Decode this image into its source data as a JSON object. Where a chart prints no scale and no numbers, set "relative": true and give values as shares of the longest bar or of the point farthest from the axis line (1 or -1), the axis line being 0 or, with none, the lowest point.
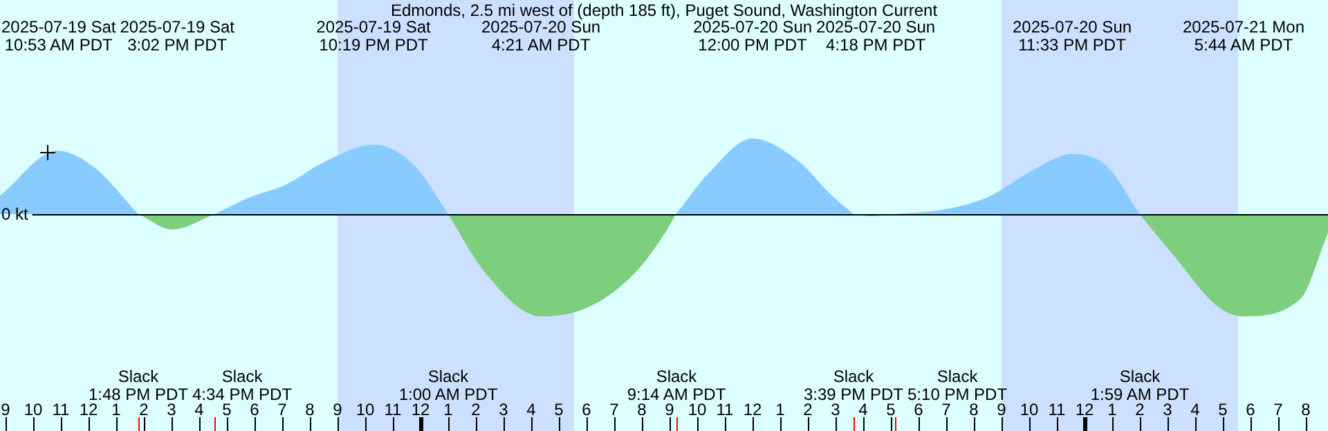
{
  "chart_data": {
    "type": "area",
    "title": "Edmonds, 2.5 mi west of (depth 185 ft), Puget Sound, Washington Current",
    "relative": true,
    "x": [
      "2025-07-19T08:48",
      "2025-07-19T10:53",
      "2025-07-19T12:09",
      "2025-07-19T13:48",
      "2025-07-19T15:02",
      "2025-07-19T16:34",
      "2025-07-19T17:48",
      "2025-07-19T19:09",
      "2025-07-19T20:27",
      "2025-07-19T22:19",
      "2025-07-19T23:48",
      "2025-07-20T01:00",
      "2025-07-20T02:18",
      "2025-07-20T04:21",
      "2025-07-20T06:09",
      "2025-07-20T07:48",
      "2025-07-20T08:48",
      "2025-07-20T09:14",
      "2025-07-20T10:27",
      "2025-07-20T12:00",
      "2025-07-20T13:39",
      "2025-07-20T14:48",
      "2025-07-20T15:39",
      "2025-07-20T16:18",
      "2025-07-20T17:10",
      "2025-07-20T18:48",
      "2025-07-20T20:27",
      "2025-07-20T22:09",
      "2025-07-20T23:33",
      "2025-07-21T00:48",
      "2025-07-21T01:59",
      "2025-07-21T03:09",
      "2025-07-21T04:48",
      "2025-07-21T05:44",
      "2025-07-21T07:48",
      "2025-07-21T08:48"
    ],
    "series": [
      {
        "color": "#87cbff",
        "values": [
          0.18,
          0.62,
          0.47,
          0,
          null,
          0,
          0.16,
          0.29,
          0.5,
          0.68,
          0.47,
          0,
          null,
          null,
          null,
          null,
          null,
          0,
          0.41,
          0.74,
          0.52,
          0.2,
          0,
          null,
          0,
          0.04,
          0.16,
          0.43,
          0.59,
          0.47,
          0,
          null,
          null,
          null,
          null,
          null
        ]
      },
      {
        "color": "#7dcf7d",
        "values": [
          null,
          null,
          null,
          0,
          -0.15,
          0,
          null,
          null,
          null,
          null,
          null,
          0,
          -0.56,
          -1,
          -0.9,
          -0.56,
          -0.2,
          0,
          null,
          null,
          null,
          null,
          0,
          -0.02,
          0,
          null,
          null,
          null,
          null,
          null,
          0,
          -0.38,
          -0.9,
          -1,
          -0.83,
          -0.18
        ]
      }
    ],
    "xlim": [
      "2025-07-19T08:48",
      "2025-07-21T08:48"
    ],
    "xticks": [
      {
        "value": "2025-07-19T09:00",
        "label": "9"
      },
      {
        "value": "2025-07-19T10:00",
        "label": "10"
      },
      {
        "value": "2025-07-19T11:00",
        "label": "11"
      },
      {
        "value": "2025-07-19T12:00",
        "label": "12"
      },
      {
        "value": "2025-07-19T13:00",
        "label": "1"
      },
      {
        "value": "2025-07-19T14:00",
        "label": "2"
      },
      {
        "value": "2025-07-19T15:00",
        "label": "3"
      },
      {
        "value": "2025-07-19T16:00",
        "label": "4"
      },
      {
        "value": "2025-07-19T17:00",
        "label": "5"
      },
      {
        "value": "2025-07-19T18:00",
        "label": "6"
      },
      {
        "value": "2025-07-19T19:00",
        "label": "7"
      },
      {
        "value": "2025-07-19T20:00",
        "label": "8"
      },
      {
        "value": "2025-07-19T21:00",
        "label": "9"
      },
      {
        "value": "2025-07-19T22:00",
        "label": "10"
      },
      {
        "value": "2025-07-19T23:00",
        "label": "11"
      },
      {
        "value": "2025-07-20T00:00",
        "label": "12"
      },
      {
        "value": "2025-07-20T01:00",
        "label": "1"
      },
      {
        "value": "2025-07-20T02:00",
        "label": "2"
      },
      {
        "value": "2025-07-20T03:00",
        "label": "3"
      },
      {
        "value": "2025-07-20T04:00",
        "label": "4"
      },
      {
        "value": "2025-07-20T05:00",
        "label": "5"
      },
      {
        "value": "2025-07-20T06:00",
        "label": "6"
      },
      {
        "value": "2025-07-20T07:00",
        "label": "7"
      },
      {
        "value": "2025-07-20T08:00",
        "label": "8"
      },
      {
        "value": "2025-07-20T09:00",
        "label": "9"
      },
      {
        "value": "2025-07-20T10:00",
        "label": "10"
      },
      {
        "value": "2025-07-20T11:00",
        "label": "11"
      },
      {
        "value": "2025-07-20T12:00",
        "label": "12"
      },
      {
        "value": "2025-07-20T13:00",
        "label": "1"
      },
      {
        "value": "2025-07-20T14:00",
        "label": "2"
      },
      {
        "value": "2025-07-20T15:00",
        "label": "3"
      },
      {
        "value": "2025-07-20T16:00",
        "label": "4"
      },
      {
        "value": "2025-07-20T17:00",
        "label": "5"
      },
      {
        "value": "2025-07-20T18:00",
        "label": "6"
      },
      {
        "value": "2025-07-20T19:00",
        "label": "7"
      },
      {
        "value": "2025-07-20T20:00",
        "label": "8"
      },
      {
        "value": "2025-07-20T21:00",
        "label": "9"
      },
      {
        "value": "2025-07-20T22:00",
        "label": "10"
      },
      {
        "value": "2025-07-20T23:00",
        "label": "11"
      },
      {
        "value": "2025-07-21T00:00",
        "label": "12"
      },
      {
        "value": "2025-07-21T01:00",
        "label": "1"
      },
      {
        "value": "2025-07-21T02:00",
        "label": "2"
      },
      {
        "value": "2025-07-21T03:00",
        "label": "3"
      },
      {
        "value": "2025-07-21T04:00",
        "label": "4"
      },
      {
        "value": "2025-07-21T05:00",
        "label": "5"
      },
      {
        "value": "2025-07-21T06:00",
        "label": "6"
      },
      {
        "value": "2025-07-21T07:00",
        "label": "7"
      },
      {
        "value": "2025-07-21T08:00",
        "label": "8"
      }
    ],
    "bands": [
      {
        "axis": "x",
        "from": "2025-07-19T21:00",
        "to": "2025-07-20T05:33",
        "color": "#cce0ff"
      },
      {
        "axis": "x",
        "from": "2025-07-20T21:00",
        "to": "2025-07-21T05:33",
        "color": "#cce0ff"
      }
    ],
    "ref_lines": [
      {
        "axis": "y",
        "value": 0,
        "label": "0 kt",
        "color": "#000000"
      }
    ],
    "annotations": [
      "2025-07-19 Sat\n10:53 AM PDT",
      "2025-07-19 Sat\n3:02 PM PDT",
      "2025-07-19 Sat\n10:19 PM PDT",
      "2025-07-20 Sun\n4:21 AM PDT",
      "2025-07-20 Sun\n12:00 PM PDT",
      "2025-07-20 Sun\n4:18 PM PDT",
      "2025-07-20 Sun\n11:33 PM PDT",
      "2025-07-21 Mon\n5:44 AM PDT",
      "Slack\n1:48 PM PDT",
      "Slack\n4:34 PM PDT",
      "Slack\n1:00 AM PDT",
      "Slack\n9:14 AM PDT",
      "Slack\n3:39 PM PDT",
      "Slack\n5:10 PM PDT",
      "Slack\n1:59 AM PDT"
    ]
  }
}
